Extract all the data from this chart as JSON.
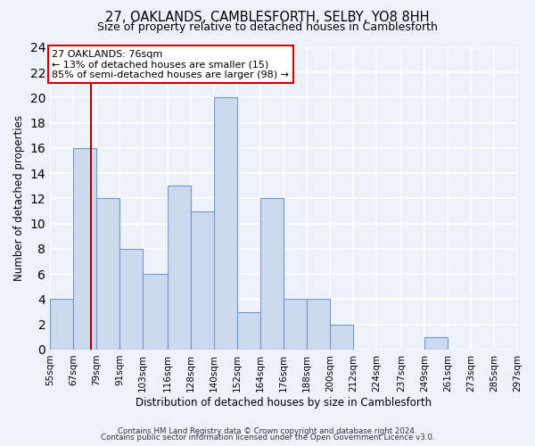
{
  "title": "27, OAKLANDS, CAMBLESFORTH, SELBY, YO8 8HH",
  "subtitle": "Size of property relative to detached houses in Camblesforth",
  "xlabel": "Distribution of detached houses by size in Camblesforth",
  "ylabel": "Number of detached properties",
  "bin_edges": [
    55,
    67,
    79,
    91,
    103,
    116,
    128,
    140,
    152,
    164,
    176,
    188,
    200,
    212,
    224,
    237,
    249,
    261,
    273,
    285,
    297
  ],
  "bin_labels": [
    "55sqm",
    "67sqm",
    "79sqm",
    "91sqm",
    "103sqm",
    "116sqm",
    "128sqm",
    "140sqm",
    "152sqm",
    "164sqm",
    "176sqm",
    "188sqm",
    "200sqm",
    "212sqm",
    "224sqm",
    "237sqm",
    "249sqm",
    "261sqm",
    "273sqm",
    "285sqm",
    "297sqm"
  ],
  "counts": [
    4,
    16,
    12,
    8,
    6,
    13,
    11,
    20,
    3,
    12,
    4,
    4,
    2,
    0,
    0,
    0,
    1,
    0,
    0,
    0
  ],
  "bar_color": "#ccd9ee",
  "bar_edge_color": "#7099cc",
  "ylim": [
    0,
    24
  ],
  "yticks": [
    0,
    2,
    4,
    6,
    8,
    10,
    12,
    14,
    16,
    18,
    20,
    22,
    24
  ],
  "property_size": 76,
  "red_line_color": "#aa0000",
  "annotation_title": "27 OAKLANDS: 76sqm",
  "annotation_line1": "← 13% of detached houses are smaller (15)",
  "annotation_line2": "85% of semi-detached houses are larger (98) →",
  "annotation_box_color": "#ffffff",
  "annotation_border_color": "#cc0000",
  "footer1": "Contains HM Land Registry data © Crown copyright and database right 2024.",
  "footer2": "Contains public sector information licensed under the Open Government Licence v3.0.",
  "background_color": "#edf1fa",
  "grid_color": "#ffffff"
}
